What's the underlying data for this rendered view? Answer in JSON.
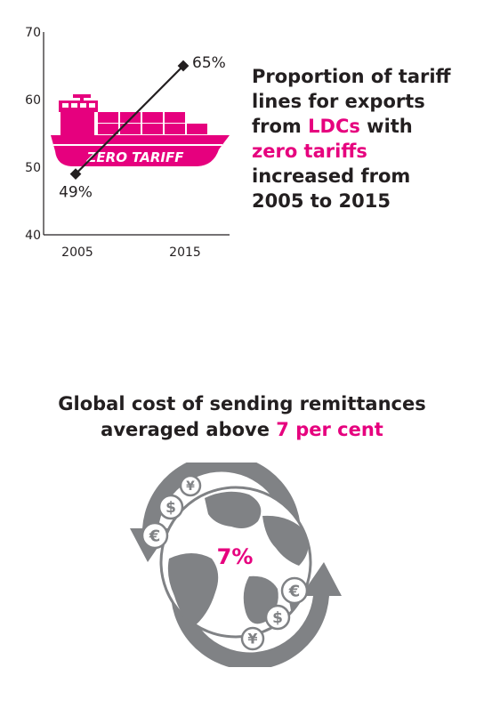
{
  "chart_data": {
    "type": "line",
    "x": [
      "2005",
      "2015"
    ],
    "values": [
      49,
      65
    ],
    "data_labels": [
      "49%",
      "65%"
    ],
    "ylim": [
      40,
      70
    ],
    "yticks": [
      40,
      50,
      60,
      70
    ],
    "grid": false,
    "title": "",
    "xlabel": "",
    "ylabel": ""
  },
  "ship": {
    "label": "ZERO TARIFF",
    "color": "#e6007e"
  },
  "headline": {
    "line1": "Proportion of tariff",
    "line2": "lines for exports",
    "line3_a": "from ",
    "line3_hl": "LDCs",
    "line3_b": " with",
    "line4_hl": "zero tariffs",
    "line5": "increased from",
    "line6": "2005 to 2015"
  },
  "remittances": {
    "line1": "Global cost of sending remittances",
    "line2_a": "averaged above ",
    "line2_hl": "7 per cent",
    "globe_value": "7%",
    "currency_symbols": [
      "¥",
      "$",
      "€",
      "€",
      "$",
      "¥"
    ]
  },
  "colors": {
    "accent": "#e6007e",
    "gray": "#808285",
    "text": "#231f20"
  }
}
